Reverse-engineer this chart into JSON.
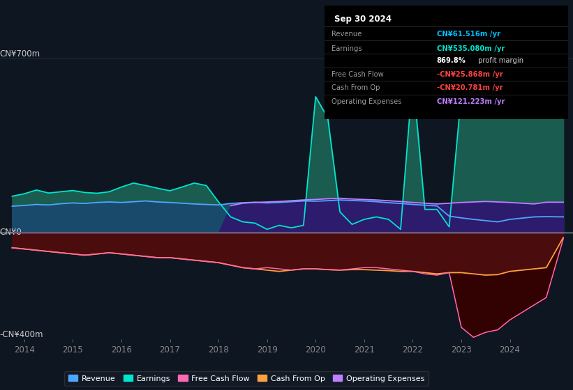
{
  "bg_color": "#0e1621",
  "plot_bg_color": "#0e1621",
  "info_box_color": "#000000",
  "ylabel_top": "CN¥700m",
  "ylabel_zero": "CN¥0",
  "ylabel_bottom": "-CN¥400m",
  "xlim": [
    2013.5,
    2025.3
  ],
  "ylim": [
    -430,
    730
  ],
  "xticks": [
    2014,
    2015,
    2016,
    2017,
    2018,
    2019,
    2020,
    2021,
    2022,
    2023,
    2024
  ],
  "legend": [
    {
      "label": "Revenue",
      "color": "#4da6ff"
    },
    {
      "label": "Earnings",
      "color": "#00e5cc"
    },
    {
      "label": "Free Cash Flow",
      "color": "#ff69b4"
    },
    {
      "label": "Cash From Op",
      "color": "#ffa040"
    },
    {
      "label": "Operating Expenses",
      "color": "#bf7fff"
    }
  ],
  "info_box": {
    "date": "Sep 30 2024",
    "rows": [
      {
        "label": "Revenue",
        "value": "CN¥61.516m /yr",
        "value_color": "#00bfff"
      },
      {
        "label": "Earnings",
        "value": "CN¥535.080m /yr",
        "value_color": "#00e5cc"
      },
      {
        "label": "",
        "value1": "869.8%",
        "value2": " profit margin",
        "value_color": "#ffffff"
      },
      {
        "label": "Free Cash Flow",
        "value": "-CN¥25.868m /yr",
        "value_color": "#ff4040"
      },
      {
        "label": "Cash From Op",
        "value": "-CN¥20.781m /yr",
        "value_color": "#ff4040"
      },
      {
        "label": "Operating Expenses",
        "value": "CN¥121.223m /yr",
        "value_color": "#bf7fff"
      }
    ]
  },
  "series": {
    "years": [
      2013.75,
      2014.0,
      2014.25,
      2014.5,
      2014.75,
      2015.0,
      2015.25,
      2015.5,
      2015.75,
      2016.0,
      2016.25,
      2016.5,
      2016.75,
      2017.0,
      2017.25,
      2017.5,
      2017.75,
      2018.0,
      2018.25,
      2018.5,
      2018.75,
      2019.0,
      2019.25,
      2019.5,
      2019.75,
      2020.0,
      2020.25,
      2020.5,
      2020.75,
      2021.0,
      2021.25,
      2021.5,
      2021.75,
      2022.0,
      2022.25,
      2022.5,
      2022.75,
      2023.0,
      2023.25,
      2023.5,
      2023.75,
      2024.0,
      2024.25,
      2024.5,
      2024.75,
      2025.1
    ],
    "revenue": [
      105,
      108,
      112,
      110,
      115,
      118,
      116,
      120,
      122,
      120,
      123,
      126,
      122,
      120,
      117,
      114,
      112,
      110,
      116,
      119,
      121,
      118,
      120,
      123,
      126,
      125,
      127,
      130,
      128,
      126,
      123,
      119,
      116,
      112,
      109,
      106,
      65,
      58,
      52,
      47,
      42,
      52,
      57,
      62,
      63,
      62
    ],
    "earnings": [
      145,
      155,
      170,
      158,
      163,
      168,
      160,
      157,
      163,
      182,
      198,
      188,
      177,
      167,
      182,
      198,
      188,
      122,
      62,
      42,
      37,
      12,
      28,
      18,
      28,
      545,
      460,
      82,
      32,
      52,
      62,
      52,
      12,
      625,
      92,
      92,
      22,
      555,
      535,
      505,
      485,
      535,
      555,
      565,
      535,
      535
    ],
    "free_cash_flow": [
      -62,
      -67,
      -72,
      -77,
      -82,
      -87,
      -92,
      -87,
      -82,
      -87,
      -92,
      -97,
      -102,
      -102,
      -107,
      -112,
      -117,
      -122,
      -132,
      -142,
      -147,
      -142,
      -147,
      -152,
      -147,
      -147,
      -150,
      -152,
      -147,
      -142,
      -142,
      -147,
      -152,
      -157,
      -167,
      -172,
      -162,
      -382,
      -422,
      -402,
      -392,
      -352,
      -322,
      -292,
      -262,
      -26
    ],
    "cash_from_op": [
      -62,
      -67,
      -72,
      -77,
      -82,
      -87,
      -92,
      -87,
      -82,
      -87,
      -92,
      -97,
      -102,
      -102,
      -107,
      -112,
      -117,
      -122,
      -132,
      -142,
      -147,
      -152,
      -157,
      -152,
      -147,
      -147,
      -150,
      -152,
      -150,
      -150,
      -152,
      -154,
      -157,
      -157,
      -162,
      -167,
      -162,
      -162,
      -167,
      -172,
      -170,
      -157,
      -152,
      -147,
      -142,
      -21
    ],
    "operating_expenses": [
      0,
      0,
      0,
      0,
      0,
      0,
      0,
      0,
      0,
      0,
      0,
      0,
      0,
      0,
      0,
      0,
      0,
      0,
      107,
      117,
      120,
      122,
      124,
      127,
      130,
      132,
      135,
      137,
      134,
      132,
      130,
      127,
      124,
      120,
      117,
      114,
      117,
      120,
      122,
      124,
      122,
      120,
      117,
      114,
      121,
      121
    ]
  }
}
